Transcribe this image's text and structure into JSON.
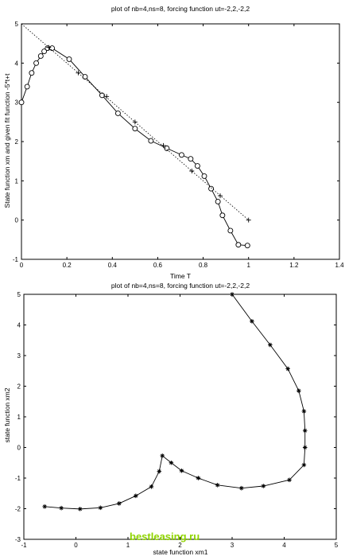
{
  "chart_data": [
    {
      "type": "line",
      "title": "plot of nb=4,ns=8, forcing function ut=-2,2,-2,2",
      "xlabel": "Time T",
      "ylabel": "State function xm and given fit function -5*t+t",
      "xlim": [
        0,
        1.4
      ],
      "ylim": [
        -1,
        5
      ],
      "xticks": [
        "0",
        "0.2",
        "0.4",
        "0.6",
        "0.8",
        "1",
        "1.2",
        "1.4"
      ],
      "yticks": [
        "-1",
        "0",
        "1",
        "2",
        "3",
        "4",
        "5"
      ],
      "grid": false,
      "series": [
        {
          "style": "solid line with circle markers",
          "x": [
            0,
            0.025,
            0.045,
            0.065,
            0.085,
            0.1,
            0.115,
            0.135,
            0.21,
            0.28,
            0.355,
            0.425,
            0.5,
            0.57,
            0.64,
            0.705,
            0.745,
            0.775,
            0.805,
            0.835,
            0.865,
            0.885,
            0.92,
            0.955,
            0.995
          ],
          "y": [
            3.0,
            3.4,
            3.75,
            4.0,
            4.18,
            4.3,
            4.38,
            4.38,
            4.1,
            3.65,
            3.18,
            2.72,
            2.33,
            2.02,
            1.83,
            1.66,
            1.56,
            1.38,
            1.12,
            0.8,
            0.47,
            0.12,
            -0.27,
            -0.63,
            -0.65
          ]
        },
        {
          "style": "plus markers",
          "x": [
            0.12,
            0.25,
            0.375,
            0.5,
            0.625,
            0.75,
            0.875,
            1.0
          ],
          "y": [
            4.4,
            3.75,
            3.15,
            2.5,
            1.9,
            1.25,
            0.62,
            0.0
          ]
        },
        {
          "style": "dotted line",
          "x": [
            0,
            1.0
          ],
          "y": [
            5.0,
            0.0
          ]
        }
      ]
    },
    {
      "type": "line",
      "title": "plot of nb=4,ns=8, forcing function ut=-2,2,-2,2",
      "xlabel": "state function xm1",
      "ylabel": "state function xm2",
      "xlim": [
        -1,
        5
      ],
      "ylim": [
        -3,
        5
      ],
      "xticks": [
        "-1",
        "0",
        "1",
        "2",
        "3",
        "4",
        "5"
      ],
      "yticks": [
        "-3",
        "-2",
        "-1",
        "0",
        "1",
        "2",
        "3",
        "4",
        "5"
      ],
      "grid": false,
      "series": [
        {
          "style": "solid line with star markers",
          "x": [
            3.0,
            3.38,
            3.73,
            4.07,
            4.28,
            4.38,
            4.4,
            4.4,
            4.38,
            4.1,
            3.6,
            3.18,
            2.72,
            2.35,
            2.03,
            1.83,
            1.66,
            1.6,
            1.45,
            1.15,
            0.83,
            0.47,
            0.08,
            -0.28,
            -0.6
          ],
          "y": [
            5.0,
            4.12,
            3.35,
            2.57,
            1.85,
            1.18,
            0.55,
            0.0,
            -0.57,
            -1.06,
            -1.26,
            -1.33,
            -1.23,
            -1.0,
            -0.76,
            -0.5,
            -0.27,
            -0.78,
            -1.28,
            -1.58,
            -1.83,
            -1.97,
            -2.01,
            -1.98,
            -1.93
          ]
        }
      ]
    }
  ],
  "watermark": "bestleasing.ru",
  "colors": {
    "watermark": "#8fd400",
    "ink": "#000000"
  }
}
